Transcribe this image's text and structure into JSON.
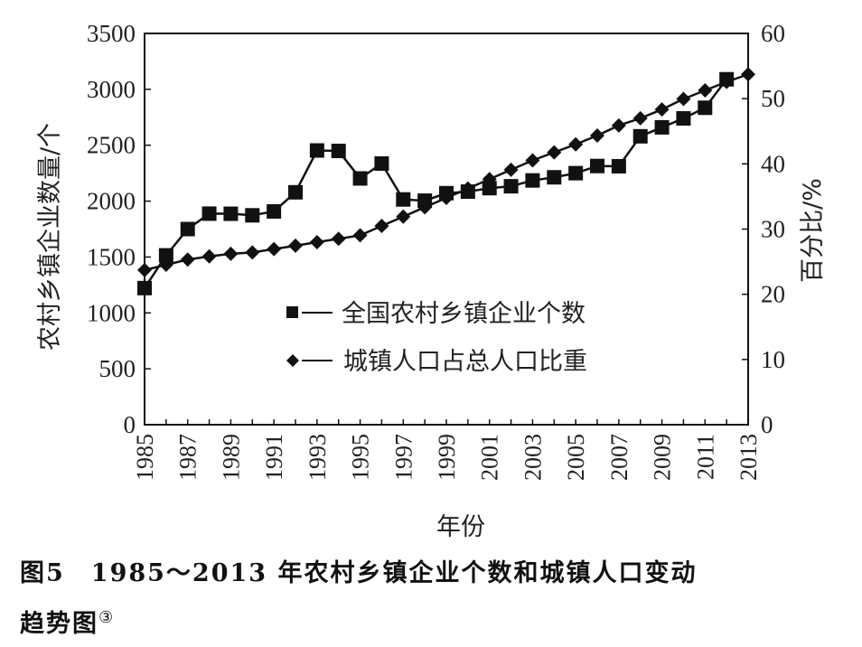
{
  "chart_data": {
    "type": "line",
    "title": "",
    "xlabel": "年份",
    "ylabel": "农村乡镇企业数量/个",
    "y2label": "百分比/%",
    "ylim": [
      0,
      3500
    ],
    "y2lim": [
      0,
      60
    ],
    "yticks": [
      0,
      500,
      1000,
      1500,
      2000,
      2500,
      3000,
      3500
    ],
    "y2ticks": [
      0,
      10,
      20,
      30,
      40,
      50,
      60
    ],
    "xticks": [
      1985,
      1987,
      1989,
      1991,
      1993,
      1995,
      1997,
      1999,
      2001,
      2003,
      2005,
      2007,
      2009,
      2011,
      2013
    ],
    "grid": false,
    "legend_position": "inside-center",
    "x": [
      1985,
      1986,
      1987,
      1988,
      1989,
      1990,
      1991,
      1992,
      1993,
      1994,
      1995,
      1996,
      1997,
      1998,
      1999,
      2000,
      2001,
      2002,
      2003,
      2004,
      2005,
      2006,
      2007,
      2008,
      2009,
      2010,
      2011,
      2012,
      2013
    ],
    "series": [
      {
        "name": "全国农村乡镇企业个数",
        "marker": "square",
        "axis": "left",
        "values": [
          1222,
          1515,
          1750,
          1888,
          1887,
          1873,
          1908,
          2079,
          2453,
          2449,
          2203,
          2336,
          2015,
          2004,
          2071,
          2085,
          2116,
          2133,
          2185,
          2213,
          2250,
          2314,
          2312,
          2580,
          2660,
          2740,
          2835,
          3090,
          null
        ]
      },
      {
        "name": "城镇人口占总人口比重",
        "marker": "diamond",
        "axis": "right",
        "values": [
          23.71,
          24.52,
          25.32,
          25.81,
          26.21,
          26.41,
          26.94,
          27.46,
          27.99,
          28.51,
          29.04,
          30.48,
          31.91,
          33.35,
          34.78,
          36.22,
          37.66,
          39.09,
          40.53,
          41.76,
          42.99,
          44.34,
          45.89,
          46.99,
          48.34,
          49.95,
          51.27,
          52.57,
          53.73
        ]
      }
    ]
  },
  "caption": {
    "line1": "图5　1985～2013 年农村乡镇企业个数和城镇人口变动",
    "line2": "趋势图",
    "footnote_mark": "③"
  }
}
